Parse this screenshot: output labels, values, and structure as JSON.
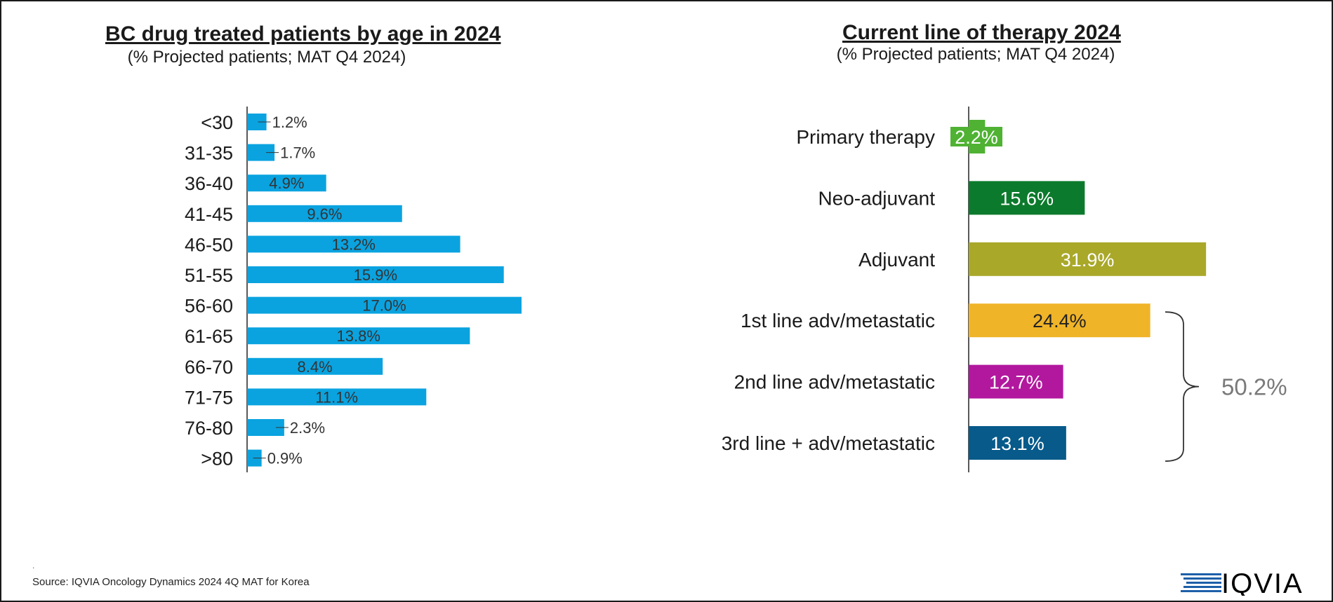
{
  "left_chart": {
    "title": "BC drug treated patients by age in 2024",
    "subtitle": "(% Projected patients; MAT Q4 2024)"
  },
  "right_chart": {
    "title": "Current line of therapy 2024",
    "subtitle": "(% Projected patients; MAT Q4 2024)",
    "bracket_label": "50.2%"
  },
  "footer": {
    "dot": ".",
    "source": "Source: IQVIA Oncology Dynamics 2024 4Q MAT for Korea",
    "logo_text": "IQVIA"
  },
  "chart_data": [
    {
      "type": "bar",
      "orientation": "horizontal",
      "title": "BC drug treated patients by age in 2024",
      "subtitle": "(% Projected patients; MAT Q4 2024)",
      "categories": [
        "<30",
        "31-35",
        "36-40",
        "41-45",
        "46-50",
        "51-55",
        "56-60",
        "61-65",
        "66-70",
        "71-75",
        "76-80",
        ">80"
      ],
      "values": [
        1.2,
        1.7,
        4.9,
        9.6,
        13.2,
        15.9,
        17.0,
        13.8,
        8.4,
        11.1,
        2.3,
        0.9
      ],
      "labels": [
        "1.2%",
        "1.7%",
        "4.9%",
        "9.6%",
        "13.2%",
        "15.9%",
        "17.0%",
        "13.8%",
        "8.4%",
        "11.1%",
        "2.3%",
        "0.9%"
      ],
      "color": "#0aa3e0",
      "grid": false
    },
    {
      "type": "bar",
      "orientation": "horizontal",
      "title": "Current line of therapy 2024",
      "subtitle": "(% Projected patients; MAT Q4 2024)",
      "categories": [
        "Primary therapy",
        "Neo-adjuvant",
        "Adjuvant",
        "1st line adv/metastatic",
        "2nd line adv/metastatic",
        "3rd line + adv/metastatic"
      ],
      "values": [
        2.2,
        15.6,
        31.9,
        24.4,
        12.7,
        13.1
      ],
      "labels": [
        "2.2%",
        "15.6%",
        "31.9%",
        "24.4%",
        "12.7%",
        "13.1%"
      ],
      "colors": [
        "#4fb233",
        "#0c7a2c",
        "#a9a829",
        "#f0b429",
        "#b2189e",
        "#075a8a"
      ],
      "label_colors": [
        "#ffffff",
        "#ffffff",
        "#ffffff",
        "#222222",
        "#ffffff",
        "#ffffff"
      ],
      "annotation": {
        "text": "50.2%",
        "spans": [
          "1st line adv/metastatic",
          "2nd line adv/metastatic",
          "3rd line + adv/metastatic"
        ]
      },
      "grid": false
    }
  ]
}
